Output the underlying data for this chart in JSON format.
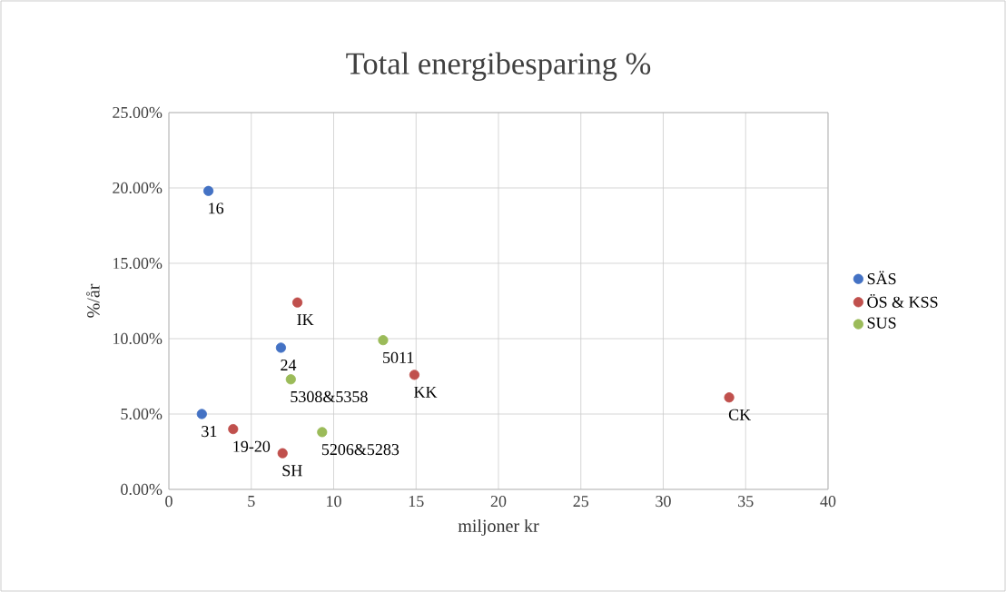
{
  "chart_data": {
    "type": "scatter",
    "title": "Total energibesparing %",
    "xlabel": "miljoner kr",
    "ylabel": "%/år",
    "xlim": [
      0,
      40
    ],
    "xticks": [
      0,
      5,
      10,
      15,
      20,
      25,
      30,
      35,
      40
    ],
    "ylim": [
      0,
      25
    ],
    "yticks": [
      {
        "value": 0,
        "label": "0.00%"
      },
      {
        "value": 5,
        "label": "5.00%"
      },
      {
        "value": 10,
        "label": "10.00%"
      },
      {
        "value": 15,
        "label": "15.00%"
      },
      {
        "value": 20,
        "label": "20.00%"
      },
      {
        "value": 25,
        "label": "25.00%"
      }
    ],
    "grid": true,
    "legend": "right",
    "marker": "circle",
    "series": [
      {
        "name": "SÄS",
        "color": "#4472c4",
        "x": [
          2.4,
          6.8,
          2.0
        ],
        "values": [
          19.8,
          9.4,
          5.0
        ]
      },
      {
        "name": "ÖS & KSS",
        "color": "#c0504d",
        "x": [
          7.8,
          14.9,
          34.0,
          3.9,
          6.9
        ],
        "values": [
          12.4,
          7.6,
          6.1,
          4.0,
          2.4
        ]
      },
      {
        "name": "SUS",
        "color": "#9bbb59",
        "x": [
          13.0,
          7.4,
          9.3
        ],
        "values": [
          9.9,
          7.3,
          3.8
        ]
      }
    ],
    "annotations": [
      {
        "text": "16",
        "x": 2.4,
        "y": 19.8
      },
      {
        "text": "24",
        "x": 6.8,
        "y": 9.4
      },
      {
        "text": "31",
        "x": 2.0,
        "y": 5.0
      },
      {
        "text": "IK",
        "x": 7.8,
        "y": 12.4
      },
      {
        "text": "KK",
        "x": 14.9,
        "y": 7.6
      },
      {
        "text": "CK",
        "x": 34.0,
        "y": 6.1
      },
      {
        "text": "19-20",
        "x": 3.9,
        "y": 4.0
      },
      {
        "text": "SH",
        "x": 6.9,
        "y": 2.4
      },
      {
        "text": "5011",
        "x": 13.0,
        "y": 9.9
      },
      {
        "text": "5308&5358",
        "x": 7.4,
        "y": 7.3
      },
      {
        "text": "5206&5283",
        "x": 9.3,
        "y": 3.8
      }
    ]
  }
}
